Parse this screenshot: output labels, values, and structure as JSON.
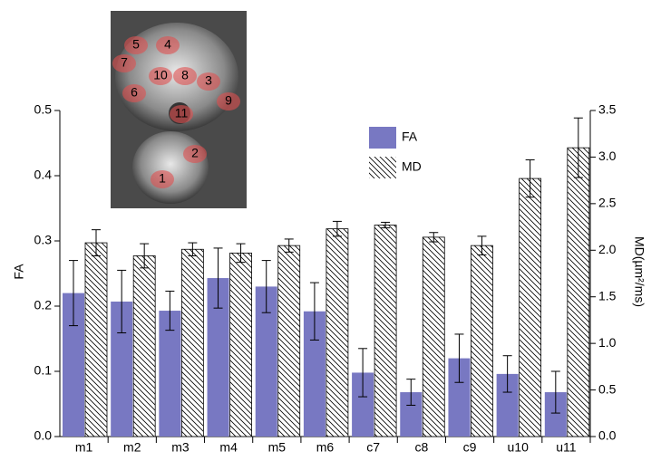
{
  "chart_data": {
    "type": "bar",
    "categories": [
      "m1",
      "m2",
      "m3",
      "m4",
      "m5",
      "m6",
      "c7",
      "c8",
      "c9",
      "u10",
      "u11"
    ],
    "ylabel": "FA",
    "y2label": "MD(µm²/ms)",
    "ylim": [
      0,
      0.5
    ],
    "yticks": [
      {
        "value": 0,
        "label": "0.0"
      },
      0.1,
      0.2,
      0.3,
      0.4,
      0.5
    ],
    "y2lim": [
      0,
      3.5
    ],
    "y2ticks": [
      {
        "value": 0,
        "label": "0.0"
      },
      0.5,
      {
        "value": 1,
        "label": "1.0"
      },
      1.5,
      {
        "value": 2,
        "label": "2.0"
      },
      2.5,
      {
        "value": 3,
        "label": "3.0"
      },
      3.5
    ],
    "series": [
      {
        "name": "FA",
        "color": "#7878c2",
        "values": [
          0.22,
          0.207,
          0.193,
          0.243,
          0.23,
          0.192,
          0.098,
          0.068,
          0.12,
          0.096,
          0.068
        ],
        "errors": [
          0.05,
          0.048,
          0.03,
          0.046,
          0.04,
          0.044,
          0.037,
          0.02,
          0.037,
          0.028,
          0.032
        ]
      },
      {
        "name": "MD",
        "color": "#000000",
        "axis": "y2",
        "values": [
          2.08,
          1.94,
          2.01,
          1.97,
          2.05,
          2.23,
          2.27,
          2.14,
          2.05,
          2.77,
          3.1
        ],
        "errors": [
          0.14,
          0.13,
          0.07,
          0.1,
          0.07,
          0.08,
          0.03,
          0.05,
          0.1,
          0.2,
          0.32
        ]
      }
    ],
    "inset": {
      "labels": [
        "1",
        "2",
        "3",
        "4",
        "5",
        "6",
        "7",
        "8",
        "9",
        "10",
        "11"
      ]
    }
  }
}
